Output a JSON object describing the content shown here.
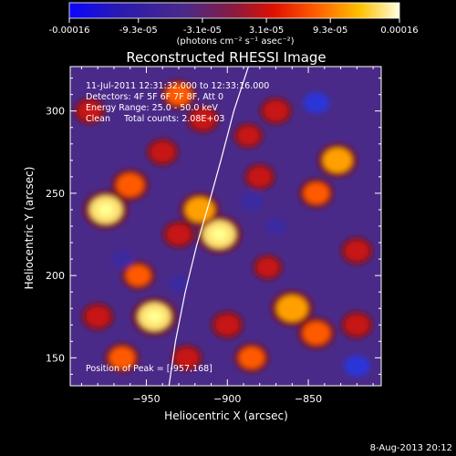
{
  "colorbar": {
    "tick_labels": [
      "-0.00016",
      "-9.3e-05",
      "-3.1e-05",
      "3.1e-05",
      "9.3e-05",
      "0.00016"
    ],
    "range": [
      -0.00016,
      0.00016
    ],
    "units_label": "(photons cm⁻² s⁻¹ asec⁻²)",
    "colormap_stops": [
      "#0b06ff",
      "#3b2a7a",
      "#5a318a",
      "#b22222",
      "#ff4a00",
      "#ffb000",
      "#ffff80",
      "#ffffff"
    ]
  },
  "chart_data": {
    "type": "heatmap",
    "title": "Reconstructed RHESSI Image",
    "xlabel": "Heliocentric X (arcsec)",
    "ylabel": "Heliocentric Y (arcsec)",
    "xlim": [
      -997,
      -805
    ],
    "ylim": [
      133,
      327
    ],
    "x_ticks": [
      -950,
      -900,
      -850
    ],
    "x_tick_labels": [
      "−950",
      "−900",
      "−850"
    ],
    "y_ticks": [
      150,
      200,
      250,
      300
    ],
    "y_tick_labels": [
      "150",
      "200",
      "250",
      "300"
    ],
    "limb_curve": {
      "x": [
        -936,
        -932,
        -926,
        -919,
        -911,
        -904,
        -896,
        -887
      ],
      "y": [
        133,
        160,
        190,
        218,
        245,
        270,
        300,
        327
      ]
    },
    "peak_position": [
      -957,
      168
    ],
    "info_lines": [
      "11-Jul-2011 12:31:32.000 to 12:33:16.000",
      "Detectors: 4F 5F 6F 7F 8F, Att 0",
      "Energy Range: 25.0 - 50.0 keV",
      "Clean     Total counts: 2.08E+03"
    ],
    "peak_label": "Position of Peak = [-957,168]",
    "blobs": [
      {
        "x": -975,
        "y": 240,
        "value": 1.0
      },
      {
        "x": -960,
        "y": 255,
        "value": 0.7
      },
      {
        "x": -945,
        "y": 175,
        "value": 1.0
      },
      {
        "x": -965,
        "y": 150,
        "value": 0.6
      },
      {
        "x": -980,
        "y": 175,
        "value": 0.5
      },
      {
        "x": -905,
        "y": 225,
        "value": 1.0
      },
      {
        "x": -917,
        "y": 240,
        "value": 0.8
      },
      {
        "x": -930,
        "y": 225,
        "value": 0.5
      },
      {
        "x": -860,
        "y": 180,
        "value": 0.9
      },
      {
        "x": -845,
        "y": 165,
        "value": 0.7
      },
      {
        "x": -885,
        "y": 150,
        "value": 0.6
      },
      {
        "x": -900,
        "y": 170,
        "value": 0.5
      },
      {
        "x": -832,
        "y": 270,
        "value": 0.8
      },
      {
        "x": -845,
        "y": 250,
        "value": 0.6
      },
      {
        "x": -930,
        "y": 310,
        "value": 0.6
      },
      {
        "x": -915,
        "y": 295,
        "value": 0.5
      },
      {
        "x": -870,
        "y": 300,
        "value": 0.5
      },
      {
        "x": -955,
        "y": 200,
        "value": 0.55
      },
      {
        "x": -880,
        "y": 260,
        "value": 0.45
      },
      {
        "x": -820,
        "y": 215,
        "value": 0.5
      },
      {
        "x": -940,
        "y": 275,
        "value": 0.5
      },
      {
        "x": -887,
        "y": 285,
        "value": 0.4
      },
      {
        "x": -985,
        "y": 300,
        "value": 0.45
      },
      {
        "x": -925,
        "y": 150,
        "value": 0.45
      },
      {
        "x": -820,
        "y": 170,
        "value": 0.5
      },
      {
        "x": -875,
        "y": 205,
        "value": 0.4
      },
      {
        "x": -845,
        "y": 305,
        "value": -0.5
      },
      {
        "x": -885,
        "y": 245,
        "value": -0.4
      },
      {
        "x": -820,
        "y": 145,
        "value": -0.5
      },
      {
        "x": -870,
        "y": 230,
        "value": -0.25
      },
      {
        "x": -930,
        "y": 195,
        "value": -0.25
      },
      {
        "x": -965,
        "y": 210,
        "value": -0.25
      }
    ]
  },
  "footer": {
    "date_stamp": "8-Aug-2013 20:12"
  }
}
